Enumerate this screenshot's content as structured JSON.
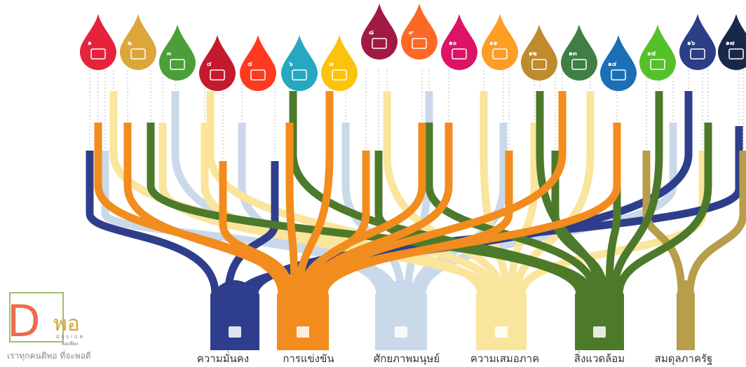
{
  "drops": [
    {
      "number": "๑"
    },
    {
      "number": "๒"
    },
    {
      "number": "๓"
    },
    {
      "number": "๔"
    },
    {
      "number": "๕"
    },
    {
      "number": "๖"
    },
    {
      "number": "๗"
    },
    {
      "number": "๘"
    },
    {
      "number": "๙"
    },
    {
      "number": "๑๐"
    },
    {
      "number": "๑๑"
    },
    {
      "number": "๑๒"
    },
    {
      "number": "๑๓"
    },
    {
      "number": "๑๔"
    },
    {
      "number": "๑๕"
    },
    {
      "number": "๑๖"
    },
    {
      "number": "๑๗"
    }
  ],
  "pillars": [
    {
      "label": "ความมั่นคง"
    },
    {
      "label": "การแข่งขัน"
    },
    {
      "label": "ศักยภาพมนุษย์"
    },
    {
      "label": "ความเสมอภาค"
    },
    {
      "label": "สิ่งแวดล้อม"
    },
    {
      "label": "สมดุลภาครัฐ"
    }
  ],
  "logo": {
    "letter": "D",
    "word": "พอ",
    "design": "DESIGN",
    "sub": "พอเพียง",
    "tagline": "เราทุกคนดีพอ ที่จะพอดี"
  }
}
